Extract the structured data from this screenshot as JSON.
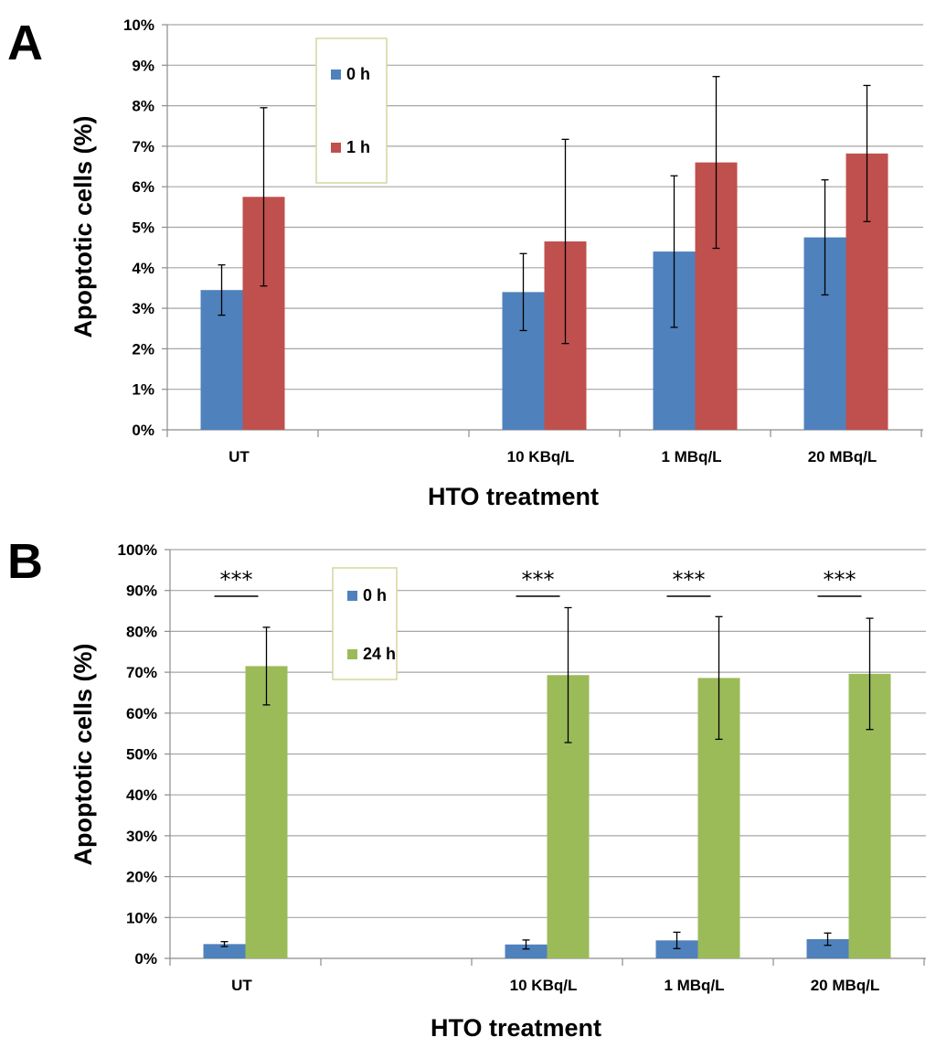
{
  "chart_data": [
    {
      "panel": "A",
      "type": "bar",
      "title": "",
      "xlabel": "HTO treatment",
      "ylabel": "Apoptotic cells (%)",
      "ylim": [
        0,
        10
      ],
      "yticks": [
        "0%",
        "1%",
        "2%",
        "3%",
        "4%",
        "5%",
        "6%",
        "7%",
        "8%",
        "9%",
        "10%"
      ],
      "categories": [
        "UT",
        "",
        "10 KBq/L",
        "1 MBq/L",
        "20 MBq/L"
      ],
      "series": [
        {
          "name": "0 h",
          "color": "#4f81bd",
          "values": [
            3.45,
            null,
            3.4,
            4.4,
            4.75
          ],
          "errors": [
            0.62,
            null,
            0.95,
            1.87,
            1.42
          ]
        },
        {
          "name": "1 h",
          "color": "#c0504d",
          "values": [
            5.75,
            null,
            4.65,
            6.6,
            6.82
          ],
          "errors": [
            2.2,
            null,
            2.52,
            2.12,
            1.68
          ]
        }
      ],
      "legend": "top-left"
    },
    {
      "panel": "B",
      "type": "bar",
      "title": "",
      "xlabel": "HTO treatment",
      "ylabel": "Apoptotic cells (%)",
      "ylim": [
        0,
        100
      ],
      "yticks": [
        "0%",
        "10%",
        "20%",
        "30%",
        "40%",
        "50%",
        "60%",
        "70%",
        "80%",
        "90%",
        "100%"
      ],
      "categories": [
        "UT",
        "",
        "10 KBq/L",
        "1 MBq/L",
        "20 MBq/L"
      ],
      "series": [
        {
          "name": "0 h",
          "color": "#4f81bd",
          "values": [
            3.5,
            null,
            3.4,
            4.4,
            4.7
          ],
          "errors": [
            0.6,
            null,
            1.1,
            2.0,
            1.5
          ]
        },
        {
          "name": "24 h",
          "color": "#9bbb59",
          "values": [
            71.5,
            null,
            69.3,
            68.6,
            69.6
          ],
          "errors": [
            9.5,
            null,
            16.5,
            15.0,
            13.6
          ]
        }
      ],
      "significance": [
        "***",
        null,
        "***",
        "***",
        "***"
      ],
      "legend": "top-left"
    }
  ]
}
